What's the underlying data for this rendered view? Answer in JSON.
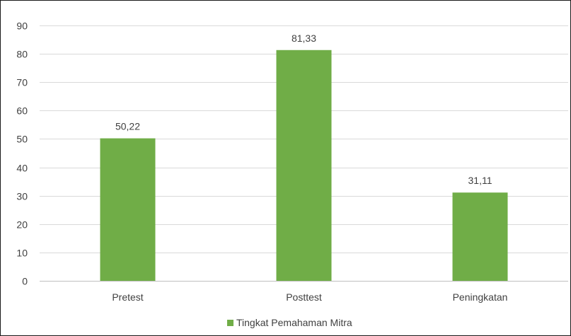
{
  "chart_data": {
    "type": "bar",
    "categories": [
      "Pretest",
      "Posttest",
      "Peningkatan"
    ],
    "series": [
      {
        "name": "Tingkat Pemahaman Mitra",
        "values": [
          50.22,
          81.33,
          31.11
        ],
        "color": "#70ad47"
      }
    ],
    "data_labels": [
      "50,22",
      "81,33",
      "31,11"
    ],
    "ylim": [
      0,
      90
    ],
    "y_ticks": [
      0,
      10,
      20,
      30,
      40,
      50,
      60,
      70,
      80,
      90
    ],
    "grid": true,
    "legend_position": "bottom",
    "title": "",
    "xlabel": "",
    "ylabel": ""
  }
}
